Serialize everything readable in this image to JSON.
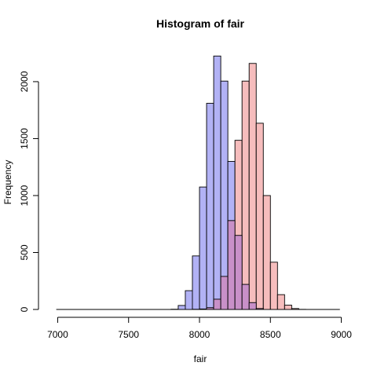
{
  "chart_data": {
    "type": "histogram",
    "title": "Histogram of fair",
    "xlabel": "fair",
    "ylabel": "Frequency",
    "xlim": [
      7000,
      9000
    ],
    "ylim": [
      0,
      2200
    ],
    "x_ticks": [
      "7000",
      "7500",
      "8000",
      "8500",
      "9000"
    ],
    "y_ticks": [
      "0",
      "500",
      "1000",
      "1500",
      "2000"
    ],
    "bin_width": 50,
    "series": [
      {
        "color": "#b2b2f5",
        "bins": [
          {
            "x0": 7800,
            "x1": 7850,
            "count": 2
          },
          {
            "x0": 7850,
            "x1": 7900,
            "count": 35
          },
          {
            "x0": 7900,
            "x1": 7950,
            "count": 165
          },
          {
            "x0": 7950,
            "x1": 8000,
            "count": 470
          },
          {
            "x0": 8000,
            "x1": 8050,
            "count": 1075
          },
          {
            "x0": 8050,
            "x1": 8100,
            "count": 1810
          },
          {
            "x0": 8100,
            "x1": 8150,
            "count": 2225
          },
          {
            "x0": 8150,
            "x1": 8200,
            "count": 2005
          },
          {
            "x0": 8200,
            "x1": 8250,
            "count": 1300
          },
          {
            "x0": 8250,
            "x1": 8300,
            "count": 650
          },
          {
            "x0": 8300,
            "x1": 8350,
            "count": 220
          },
          {
            "x0": 8350,
            "x1": 8400,
            "count": 60
          },
          {
            "x0": 8400,
            "x1": 8450,
            "count": 8
          }
        ]
      },
      {
        "color": "#f5b2b2",
        "bins": [
          {
            "x0": 7950,
            "x1": 8000,
            "count": 1
          },
          {
            "x0": 8000,
            "x1": 8050,
            "count": 4
          },
          {
            "x0": 8050,
            "x1": 8100,
            "count": 15
          },
          {
            "x0": 8100,
            "x1": 8150,
            "count": 90
          },
          {
            "x0": 8150,
            "x1": 8200,
            "count": 290
          },
          {
            "x0": 8200,
            "x1": 8250,
            "count": 780
          },
          {
            "x0": 8250,
            "x1": 8300,
            "count": 1485
          },
          {
            "x0": 8300,
            "x1": 8350,
            "count": 2005
          },
          {
            "x0": 8350,
            "x1": 8400,
            "count": 2160
          },
          {
            "x0": 8400,
            "x1": 8450,
            "count": 1635
          },
          {
            "x0": 8450,
            "x1": 8500,
            "count": 1000
          },
          {
            "x0": 8500,
            "x1": 8550,
            "count": 415
          },
          {
            "x0": 8550,
            "x1": 8600,
            "count": 130
          },
          {
            "x0": 8600,
            "x1": 8650,
            "count": 38
          },
          {
            "x0": 8650,
            "x1": 8700,
            "count": 8
          },
          {
            "x0": 8700,
            "x1": 8750,
            "count": 1
          }
        ]
      }
    ],
    "overlap_color": "#c890c8",
    "zero_line": [
      6990,
      8990
    ],
    "grid": false,
    "legend": "none"
  }
}
